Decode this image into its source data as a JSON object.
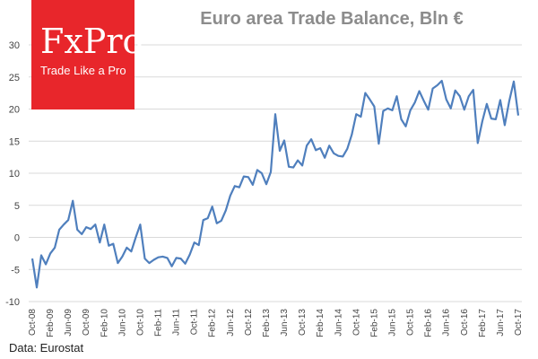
{
  "colors": {
    "line": "#4f7fbd",
    "grid": "#d9d9d9",
    "axis_text": "#444444",
    "logo_bg": "#e8262b",
    "title": "#8c8c8c"
  },
  "logo": {
    "name": "FxPro",
    "tagline": "Trade Like a Pro"
  },
  "source": "Data: Eurostat",
  "chart_data": {
    "type": "line",
    "title": "Euro area Trade Balance, Bln €",
    "xlabel": "",
    "ylabel": "",
    "ylim": [
      -10,
      30
    ],
    "yticks": [
      -10,
      -5,
      0,
      5,
      10,
      15,
      20,
      25,
      30
    ],
    "grid": true,
    "x_tick_labels": [
      "Oct-08",
      "Feb-09",
      "Jun-09",
      "Oct-09",
      "Feb-10",
      "Jun-10",
      "Oct-10",
      "Feb-11",
      "Jun-11",
      "Oct-11",
      "Feb-12",
      "Jun-12",
      "Oct-12",
      "Feb-13",
      "Jun-13",
      "Oct-13",
      "Feb-14",
      "Jun-14",
      "Oct-14",
      "Feb-15",
      "Jun-15",
      "Oct-15",
      "Feb-16",
      "Jun-16",
      "Oct-16",
      "Feb-17",
      "Jun-17",
      "Oct-17"
    ],
    "x_tick_every": 4,
    "series": [
      {
        "name": "Euro area Trade Balance",
        "start": "Oct-08",
        "values": [
          -3.3,
          -7.8,
          -2.8,
          -4.2,
          -2.5,
          -1.6,
          1.2,
          2.0,
          2.7,
          5.7,
          1.2,
          0.5,
          1.6,
          1.3,
          2.0,
          -0.8,
          2.0,
          -1.3,
          -1.0,
          -4.0,
          -3.0,
          -1.6,
          -2.2,
          0.0,
          2.0,
          -3.3,
          -4.0,
          -3.5,
          -3.1,
          -3.0,
          -3.2,
          -4.5,
          -3.2,
          -3.3,
          -4.1,
          -2.7,
          -0.8,
          -1.2,
          2.7,
          3.0,
          4.8,
          2.2,
          2.6,
          4.2,
          6.5,
          8.0,
          7.8,
          9.5,
          9.4,
          8.2,
          10.5,
          10.0,
          8.3,
          10.2,
          19.2,
          13.5,
          15.1,
          11.0,
          10.9,
          12.0,
          11.2,
          14.3,
          15.3,
          13.6,
          13.9,
          12.4,
          14.3,
          13.1,
          12.7,
          12.6,
          13.8,
          16.0,
          19.2,
          18.8,
          22.5,
          21.5,
          20.4,
          14.6,
          19.7,
          20.1,
          19.8,
          22.0,
          18.4,
          17.3,
          19.8,
          21.0,
          22.8,
          21.3,
          19.9,
          23.2,
          23.7,
          24.4,
          21.5,
          20.1,
          22.9,
          22.0,
          19.9,
          22.0,
          23.0,
          14.7,
          18.1,
          20.8,
          18.5,
          18.4,
          21.4,
          17.5,
          21.3,
          24.3,
          19.0
        ]
      }
    ]
  }
}
